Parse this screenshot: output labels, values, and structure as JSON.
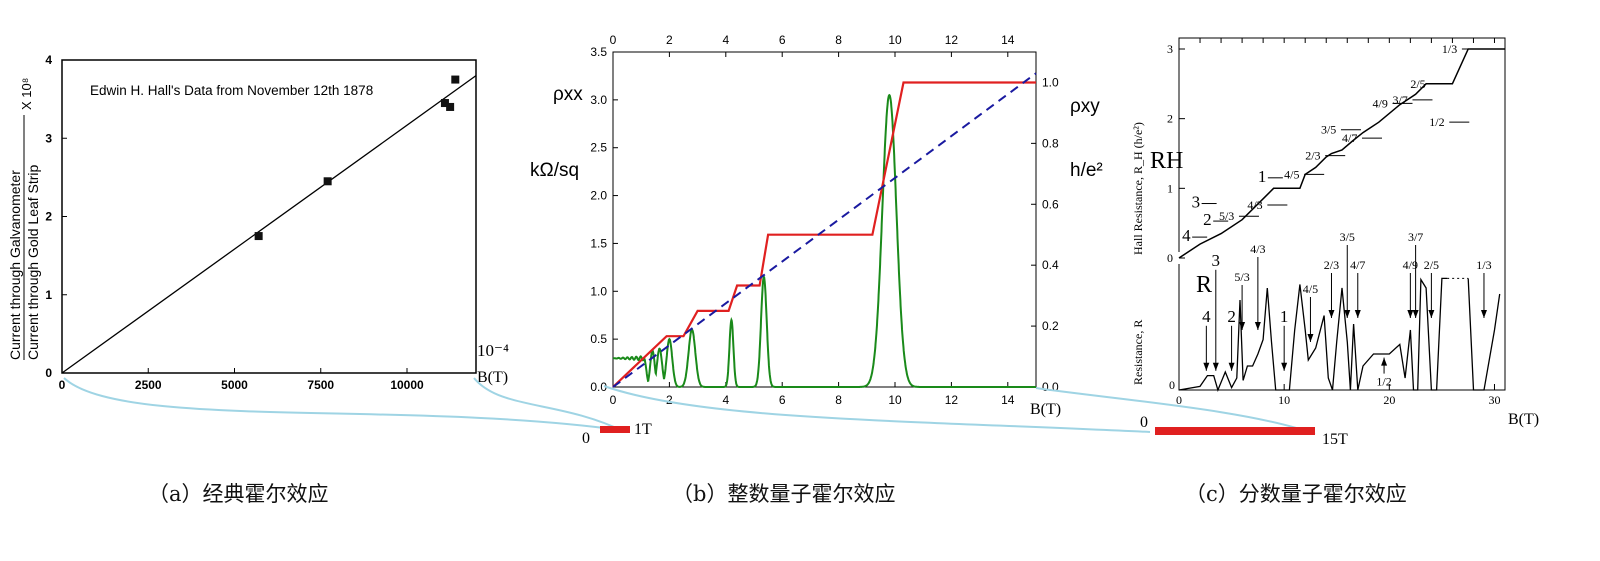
{
  "chart_data": [
    {
      "type": "scatter",
      "panel": "a",
      "title": "Edwin H. Hall's Data from November 12th 1878",
      "ylabel_num": "Current through Galvanometer",
      "ylabel_den": "Current through Gold Leaf Strip",
      "ylabel_factor": "X 10⁸",
      "xlabel_unit": "10⁻⁴",
      "xlabel": "B(T)",
      "xlim": [
        0,
        12000
      ],
      "ylim": [
        0,
        4
      ],
      "xticks": [
        0,
        2500,
        5000,
        7500,
        10000
      ],
      "yticks": [
        0,
        1,
        2,
        3,
        4
      ],
      "points": [
        [
          5700,
          1.75
        ],
        [
          7700,
          2.45
        ],
        [
          11100,
          3.45
        ],
        [
          11250,
          3.4
        ],
        [
          11400,
          3.75
        ]
      ],
      "fit_line": [
        [
          0,
          0
        ],
        [
          12000,
          3.8
        ]
      ],
      "caption": "（a）经典霍尔效应"
    },
    {
      "type": "line",
      "panel": "b",
      "xlim": [
        0,
        15
      ],
      "ylim_left": [
        0,
        3.5
      ],
      "ylim_right": [
        0,
        1.1
      ],
      "xticks": [
        0,
        2,
        4,
        6,
        8,
        10,
        12,
        14
      ],
      "yticks_left": [
        "0.0",
        "0.5",
        "1.0",
        "1.5",
        "2.0",
        "2.5",
        "3.0",
        "3.5"
      ],
      "yticks_right": [
        "0.0",
        "0.2",
        "0.4",
        "0.6",
        "0.8",
        "1.0"
      ],
      "ylabel_left": "ρxx",
      "ylabel_left_unit": "kΩ/sq",
      "ylabel_right": "ρxy",
      "ylabel_right_unit": "h/e²",
      "xlabel": "B(T)",
      "series": [
        {
          "name": "rho_xy (quantized)",
          "color": "#e02020",
          "plateaus": [
            [
              1.9,
              2.5,
              0.1667
            ],
            [
              3.0,
              4.1,
              0.25
            ],
            [
              4.4,
              5.2,
              0.3333
            ],
            [
              5.5,
              9.2,
              0.5
            ],
            [
              10.3,
              15,
              1.0
            ]
          ]
        },
        {
          "name": "rho_xx",
          "color": "#1a8a1a",
          "peaks": [
            [
              1.1,
              0.3,
              0.08
            ],
            [
              1.4,
              0.38,
              0.08
            ],
            [
              1.65,
              0.4,
              0.09
            ],
            [
              2.0,
              0.5,
              0.1
            ],
            [
              2.8,
              0.6,
              0.12
            ],
            [
              4.2,
              0.7,
              0.07
            ],
            [
              5.35,
              1.15,
              0.1
            ],
            [
              9.8,
              3.05,
              0.25
            ]
          ]
        },
        {
          "name": "classical",
          "color": "#1a1aa0",
          "style": "dashed",
          "points": [
            [
              0,
              0
            ],
            [
              15,
              1.03
            ]
          ]
        }
      ],
      "bar": {
        "start": "0",
        "end": "1T",
        "color": "#e02020"
      },
      "caption": "（b）整数量子霍尔效应"
    },
    {
      "type": "line",
      "panel": "c",
      "xlim": [
        0,
        31
      ],
      "xticks": [
        0,
        10,
        20,
        30
      ],
      "ylim_top": [
        0,
        3
      ],
      "yticks_top": [
        0,
        1,
        2,
        3
      ],
      "ylabel_top": "Hall Resistance, R_H (h/e²)",
      "ylabel_bottom": "Resistance, R",
      "label_RH": "RH",
      "label_R": "R",
      "xlabel": "B(T)",
      "zero_bottom": "0",
      "RH": [
        [
          0,
          0
        ],
        [
          2,
          0.2
        ],
        [
          4,
          0.35
        ],
        [
          6,
          0.55
        ],
        [
          8,
          0.85
        ],
        [
          9,
          1
        ],
        [
          11.5,
          1
        ],
        [
          12,
          1.2
        ],
        [
          13,
          1.3
        ],
        [
          14,
          1.45
        ],
        [
          14.5,
          1.5
        ],
        [
          15.5,
          1.55
        ],
        [
          16.5,
          1.68
        ],
        [
          17.5,
          1.8
        ],
        [
          19,
          1.95
        ],
        [
          21,
          2.2
        ],
        [
          22.5,
          2.35
        ],
        [
          23.5,
          2.5
        ],
        [
          26,
          2.5
        ],
        [
          27.5,
          3
        ],
        [
          31,
          3
        ]
      ],
      "R": [
        [
          0,
          0
        ],
        [
          2,
          0.03
        ],
        [
          2.7,
          0.12
        ],
        [
          3.3,
          0.12
        ],
        [
          3.7,
          0
        ],
        [
          4.4,
          0.15
        ],
        [
          5,
          0.02
        ],
        [
          5.5,
          0.1
        ],
        [
          5.8,
          0.75
        ],
        [
          6.1,
          0.08
        ],
        [
          6.5,
          0.2
        ],
        [
          7,
          0.2
        ],
        [
          7.5,
          0.3
        ],
        [
          8,
          0.42
        ],
        [
          8.4,
          0.85
        ],
        [
          8.8,
          0.4
        ],
        [
          9.2,
          0
        ],
        [
          10.5,
          0
        ],
        [
          11,
          0.5
        ],
        [
          11.5,
          0.88
        ],
        [
          12,
          0.5
        ],
        [
          12.3,
          0.25
        ],
        [
          13,
          0.35
        ],
        [
          13.8,
          0.62
        ],
        [
          14.2,
          0.1
        ],
        [
          14.6,
          0
        ],
        [
          15,
          0.4
        ],
        [
          15.5,
          0.85
        ],
        [
          16,
          0.4
        ],
        [
          16.3,
          0
        ],
        [
          16.6,
          0.55
        ],
        [
          17,
          0
        ],
        [
          17.5,
          0.2
        ],
        [
          18.5,
          0.3
        ],
        [
          20,
          0.3
        ],
        [
          21,
          0.38
        ],
        [
          21.5,
          0.1
        ],
        [
          22,
          0.5
        ],
        [
          22.3,
          0
        ],
        [
          22.7,
          0
        ],
        [
          23,
          0.92
        ],
        [
          23.5,
          0.85
        ],
        [
          24,
          0
        ],
        [
          24.5,
          0
        ],
        [
          25,
          0.93
        ],
        [
          25.5,
          0.93
        ]
      ],
      "R_tail": [
        [
          27.5,
          0.93
        ],
        [
          28,
          0
        ],
        [
          29,
          0
        ],
        [
          30,
          0.5
        ],
        [
          30.5,
          0.8
        ]
      ],
      "RH_labels": [
        [
          "4",
          0.3,
          0.3
        ],
        [
          "3",
          1.2,
          0.38
        ],
        [
          "2",
          2.3,
          0.53
        ],
        [
          "5/3",
          3.8,
          0.6
        ],
        [
          "4/3",
          6.5,
          0.76
        ],
        [
          "1",
          7.5,
          0.95
        ],
        [
          "4/5",
          10,
          1.2
        ],
        [
          "2/3",
          12,
          1.47
        ],
        [
          "3/5",
          13.5,
          1.64
        ],
        [
          "4/7",
          15.5,
          1.72
        ],
        [
          "4/9",
          18.4,
          2.22
        ],
        [
          "3/7",
          20.3,
          2.27
        ],
        [
          "2/5",
          22,
          2.5
        ],
        [
          "1/2",
          23.8,
          1.95
        ],
        [
          "1/3",
          25,
          3
        ]
      ],
      "R_arrows": [
        [
          "4",
          2.6,
          0.16,
          "down"
        ],
        [
          "3",
          3.5,
          0.16,
          "down"
        ],
        [
          "2",
          5,
          0.16,
          "down"
        ],
        [
          "5/3",
          6,
          0.5,
          "down"
        ],
        [
          "4/3",
          7.5,
          0.5,
          "down"
        ],
        [
          "1",
          10,
          0.16,
          "down"
        ],
        [
          "4/5",
          12.5,
          0.4,
          "down"
        ],
        [
          "2/3",
          14.5,
          0.6,
          "down"
        ],
        [
          "3/5",
          16,
          0.6,
          "down"
        ],
        [
          "4/7",
          17,
          0.6,
          "down"
        ],
        [
          "4/9",
          22,
          0.6,
          "down"
        ],
        [
          "3/7",
          22.5,
          0.6,
          "down"
        ],
        [
          "2/5",
          24,
          0.6,
          "down"
        ],
        [
          "1/3",
          29,
          0.6,
          "down"
        ],
        [
          "1/2",
          19.5,
          0.27,
          "up"
        ]
      ],
      "bar": {
        "start": "0",
        "end": "15T",
        "color": "#e02020"
      },
      "caption": "（c）分数量子霍尔效应"
    }
  ]
}
